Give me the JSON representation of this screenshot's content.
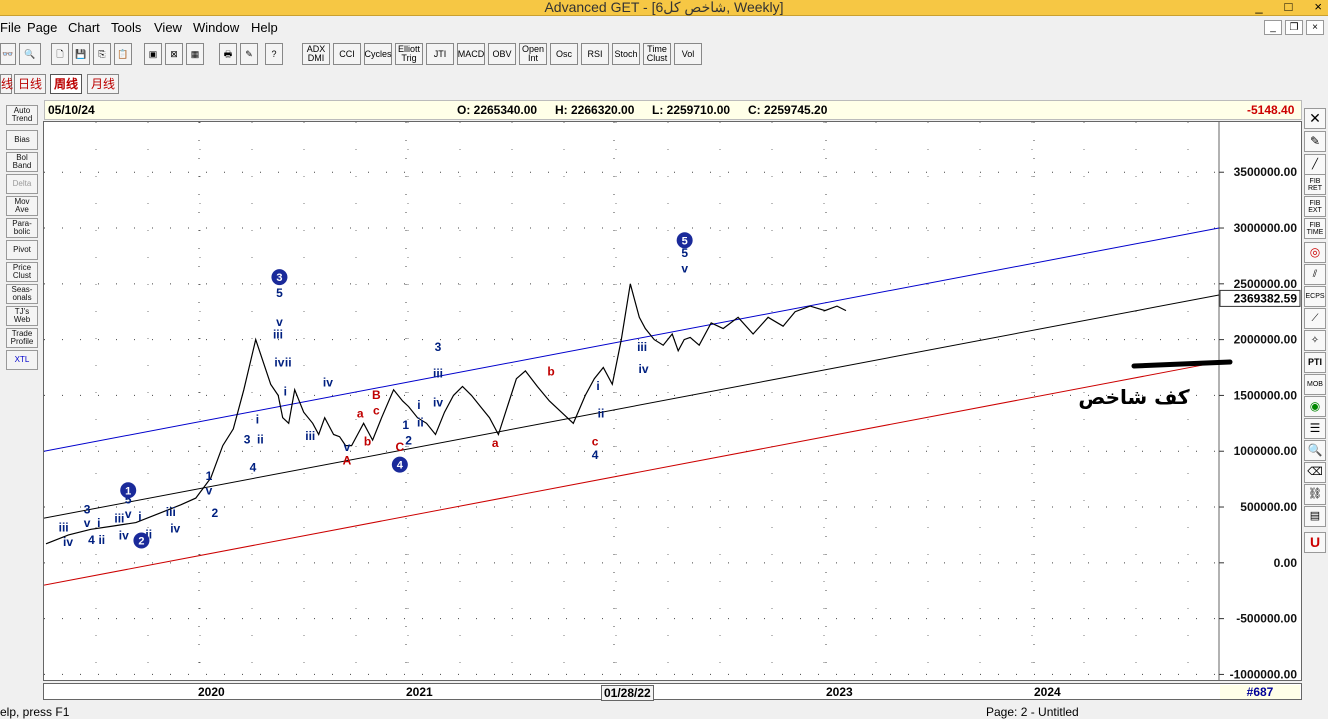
{
  "window": {
    "title": "Advanced GET - [6شاخص کل, Weekly]",
    "controls": [
      "_",
      "□",
      "×"
    ]
  },
  "menu": [
    "File",
    "Page",
    "Chart",
    "Tools",
    "View",
    "Window",
    "Help"
  ],
  "toolbar": {
    "indicators": [
      "ADX DMI",
      "CCI",
      "Cycles",
      "Elliott Trig",
      "JTI",
      "MACD",
      "OBV",
      "Open Int",
      "Osc",
      "RSI",
      "Stoch",
      "Time Clust",
      "Vol"
    ]
  },
  "tabs": [
    "线",
    "日线",
    "周线",
    "月线"
  ],
  "left_tools": [
    "Auto Trend",
    "Bias",
    "Bol Band",
    "Delta",
    "Mov Ave",
    "Para- bolic",
    "Pivot",
    "Price Clust",
    "Seas- onals",
    "TJ's Web",
    "Trade Profile",
    "XTL"
  ],
  "right_tools": [
    "FIB RET",
    "FIB EXT",
    "FIB TIME",
    "PTI",
    "MOB",
    "ECPS"
  ],
  "infobar": {
    "date": "05/10/24",
    "open": "O: 2265340.00",
    "high": "H: 2266320.00",
    "low": "L: 2259710.00",
    "close": "C: 2259745.20",
    "change": "-5148.40"
  },
  "chart_data": {
    "type": "line",
    "y_ticks": [
      "3500000.00",
      "3000000.00",
      "2500000.00",
      "2000000.00",
      "1500000.00",
      "1000000.00",
      "500000.00",
      "0.00",
      "-500000.00",
      "-1000000.00"
    ],
    "ylim": [
      -1050000,
      3950000
    ],
    "current_price": "2369382.59",
    "x_labels": [
      "2020",
      "2021",
      "01/28/22",
      "2023",
      "2024"
    ],
    "x": [
      2019.0,
      2019.15,
      2019.3,
      2019.45,
      2019.6,
      2019.75,
      2019.9,
      2020.0,
      2020.1,
      2020.18,
      2020.25,
      2020.32,
      2020.4,
      2020.45,
      2020.5,
      2020.55,
      2020.58,
      2020.62,
      2020.66,
      2020.72,
      2020.78,
      2020.82,
      2020.86,
      2020.92,
      2020.96,
      2021.0,
      2021.04,
      2021.08,
      2021.12,
      2021.18,
      2021.24,
      2021.32,
      2021.38,
      2021.42,
      2021.48,
      2021.54,
      2021.6,
      2021.66,
      2021.72,
      2021.78,
      2021.84,
      2021.9,
      2021.96,
      2022.02,
      2022.08,
      2022.14,
      2022.2,
      2022.28,
      2022.36,
      2022.44,
      2022.52,
      2022.6,
      2022.66,
      2022.72,
      2022.78,
      2022.84,
      2022.9,
      2022.96,
      2023.0,
      2023.06,
      2023.12,
      2023.18,
      2023.22,
      2023.26,
      2023.3,
      2023.36,
      2023.44,
      2023.52,
      2023.62,
      2023.72,
      2023.82,
      2023.92,
      2024.0,
      2024.1,
      2024.2,
      2024.28,
      2024.34
    ],
    "y": [
      170000,
      250000,
      300000,
      330000,
      360000,
      440000,
      520000,
      580000,
      760000,
      1050000,
      1200000,
      1550000,
      2000000,
      1800000,
      1600000,
      1500000,
      1300000,
      1250000,
      1550000,
      1350000,
      1250000,
      1150000,
      1300000,
      1150000,
      1130000,
      1050000,
      1050000,
      1150000,
      1250000,
      1100000,
      1300000,
      1550000,
      1450000,
      1400000,
      1300000,
      1250000,
      1150000,
      1350000,
      1500000,
      1580000,
      1500000,
      1400000,
      1300000,
      1150000,
      1400000,
      1650000,
      1720000,
      1580000,
      1450000,
      1350000,
      1250000,
      1500000,
      1650000,
      1750000,
      1600000,
      2000000,
      2500000,
      2200000,
      2100000,
      2000000,
      1950000,
      2050000,
      1900000,
      2000000,
      2020000,
      1950000,
      2150000,
      2100000,
      2200000,
      2050000,
      2200000,
      2120000,
      2250000,
      2300000,
      2260000,
      2300000,
      2260000
    ],
    "channels": [
      {
        "name": "upper",
        "color": "#0000cc",
        "x": [
          2018.0,
          2024.9
        ],
        "y": [
          1000000,
          3000000
        ]
      },
      {
        "name": "middle",
        "color": "#000000",
        "x": [
          2018.0,
          2024.9
        ],
        "y": [
          400000,
          2400000
        ]
      },
      {
        "name": "lower",
        "color": "#cc0000",
        "x": [
          2018.0,
          2024.9
        ],
        "y": [
          -200000,
          1800000
        ]
      }
    ],
    "annotations": [
      {
        "text": "iii",
        "x": 2018.12,
        "y": 280000,
        "c": "#002080"
      },
      {
        "text": "iv",
        "x": 2018.15,
        "y": 150000,
        "c": "#002080"
      },
      {
        "text": "3",
        "x": 2018.28,
        "y": 440000,
        "c": "#002080"
      },
      {
        "text": "v",
        "x": 2018.28,
        "y": 320000,
        "c": "#002080"
      },
      {
        "text": "4",
        "x": 2018.31,
        "y": 170000,
        "c": "#002080"
      },
      {
        "text": "i",
        "x": 2018.36,
        "y": 320000,
        "c": "#002080"
      },
      {
        "text": "ii",
        "x": 2018.38,
        "y": 170000,
        "c": "#002080"
      },
      {
        "text": "iii",
        "x": 2018.5,
        "y": 360000,
        "c": "#002080"
      },
      {
        "text": "iv",
        "x": 2018.53,
        "y": 210000,
        "c": "#002080"
      },
      {
        "text": "5",
        "x": 2018.56,
        "y": 530000,
        "c": "#002080"
      },
      {
        "text": "v",
        "x": 2018.56,
        "y": 400000,
        "c": "#002080"
      },
      {
        "text": "i",
        "x": 2018.64,
        "y": 380000,
        "c": "#002080"
      },
      {
        "text": "ii",
        "x": 2018.7,
        "y": 220000,
        "c": "#002080"
      },
      {
        "text": "iii",
        "x": 2018.85,
        "y": 420000,
        "c": "#002080"
      },
      {
        "text": "iv",
        "x": 2018.88,
        "y": 270000,
        "c": "#002080"
      },
      {
        "text": "2",
        "x": 2019.15,
        "y": 410000,
        "c": "#002080"
      },
      {
        "text": "v",
        "x": 2019.11,
        "y": 610000,
        "c": "#002080"
      },
      {
        "text": "1",
        "x": 2019.11,
        "y": 740000,
        "c": "#002080"
      },
      {
        "text": "3",
        "x": 2019.37,
        "y": 1070000,
        "c": "#002080"
      },
      {
        "text": "4",
        "x": 2019.41,
        "y": 820000,
        "c": "#002080"
      },
      {
        "text": "ii",
        "x": 2019.46,
        "y": 1070000,
        "c": "#002080"
      },
      {
        "text": "i",
        "x": 2019.44,
        "y": 1250000,
        "c": "#002080"
      },
      {
        "text": "5",
        "x": 2019.59,
        "y": 2380000,
        "c": "#002080"
      },
      {
        "text": "v",
        "x": 2019.59,
        "y": 2120000,
        "c": "#002080"
      },
      {
        "text": "iii",
        "x": 2019.58,
        "y": 2010000,
        "c": "#002080"
      },
      {
        "text": "iv",
        "x": 2019.59,
        "y": 1760000,
        "c": "#002080"
      },
      {
        "text": "ii",
        "x": 2019.65,
        "y": 1760000,
        "c": "#002080"
      },
      {
        "text": "i",
        "x": 2019.63,
        "y": 1500000,
        "c": "#002080"
      },
      {
        "text": "iii",
        "x": 2019.8,
        "y": 1100000,
        "c": "#002080"
      },
      {
        "text": "iv",
        "x": 2019.92,
        "y": 1580000,
        "c": "#002080"
      },
      {
        "text": "v",
        "x": 2020.05,
        "y": 1000000,
        "c": "#002080"
      },
      {
        "text": "A",
        "x": 2020.05,
        "y": 880000,
        "c": "#c00000"
      },
      {
        "text": "a",
        "x": 2020.14,
        "y": 1300000,
        "c": "#c00000"
      },
      {
        "text": "b",
        "x": 2020.19,
        "y": 1050000,
        "c": "#c00000"
      },
      {
        "text": "B",
        "x": 2020.25,
        "y": 1470000,
        "c": "#c00000"
      },
      {
        "text": "c",
        "x": 2020.25,
        "y": 1330000,
        "c": "#c00000"
      },
      {
        "text": "C",
        "x": 2020.41,
        "y": 1000000,
        "c": "#c00000"
      },
      {
        "text": "1",
        "x": 2020.45,
        "y": 1200000,
        "c": "#002080"
      },
      {
        "text": "2",
        "x": 2020.47,
        "y": 1060000,
        "c": "#002080"
      },
      {
        "text": "i",
        "x": 2020.54,
        "y": 1380000,
        "c": "#002080"
      },
      {
        "text": "ii",
        "x": 2020.55,
        "y": 1220000,
        "c": "#002080"
      },
      {
        "text": "3",
        "x": 2020.67,
        "y": 1900000,
        "c": "#002080"
      },
      {
        "text": "iii",
        "x": 2020.67,
        "y": 1660000,
        "c": "#002080"
      },
      {
        "text": "iv",
        "x": 2020.67,
        "y": 1400000,
        "c": "#002080"
      },
      {
        "text": "a",
        "x": 2021.06,
        "y": 1040000,
        "c": "#c00000"
      },
      {
        "text": "b",
        "x": 2021.44,
        "y": 1680000,
        "c": "#c00000"
      },
      {
        "text": "i",
        "x": 2021.76,
        "y": 1550000,
        "c": "#002080"
      },
      {
        "text": "ii",
        "x": 2021.78,
        "y": 1300000,
        "c": "#002080"
      },
      {
        "text": "c",
        "x": 2021.74,
        "y": 1050000,
        "c": "#c00000"
      },
      {
        "text": "4",
        "x": 2021.74,
        "y": 930000,
        "c": "#002080"
      },
      {
        "text": "iii",
        "x": 2022.06,
        "y": 1900000,
        "c": "#002080"
      },
      {
        "text": "iv",
        "x": 2022.07,
        "y": 1700000,
        "c": "#002080"
      },
      {
        "text": "v",
        "x": 2022.35,
        "y": 2600000,
        "c": "#002080"
      },
      {
        "text": "5",
        "x": 2022.35,
        "y": 2740000,
        "c": "#002080"
      }
    ],
    "wave_circles": [
      {
        "text": "1",
        "x": 2018.56,
        "y": 650000
      },
      {
        "text": "2",
        "x": 2018.65,
        "y": 200000
      },
      {
        "text": "3",
        "x": 2019.59,
        "y": 2560000
      },
      {
        "text": "4",
        "x": 2020.41,
        "y": 880000
      },
      {
        "text": "5",
        "x": 2022.35,
        "y": 2890000
      }
    ],
    "note_text": "کف شاخص"
  },
  "xaxis_right": "#687",
  "status": {
    "left": "elp, press F1",
    "right": "Page: 2 - Untitled"
  }
}
